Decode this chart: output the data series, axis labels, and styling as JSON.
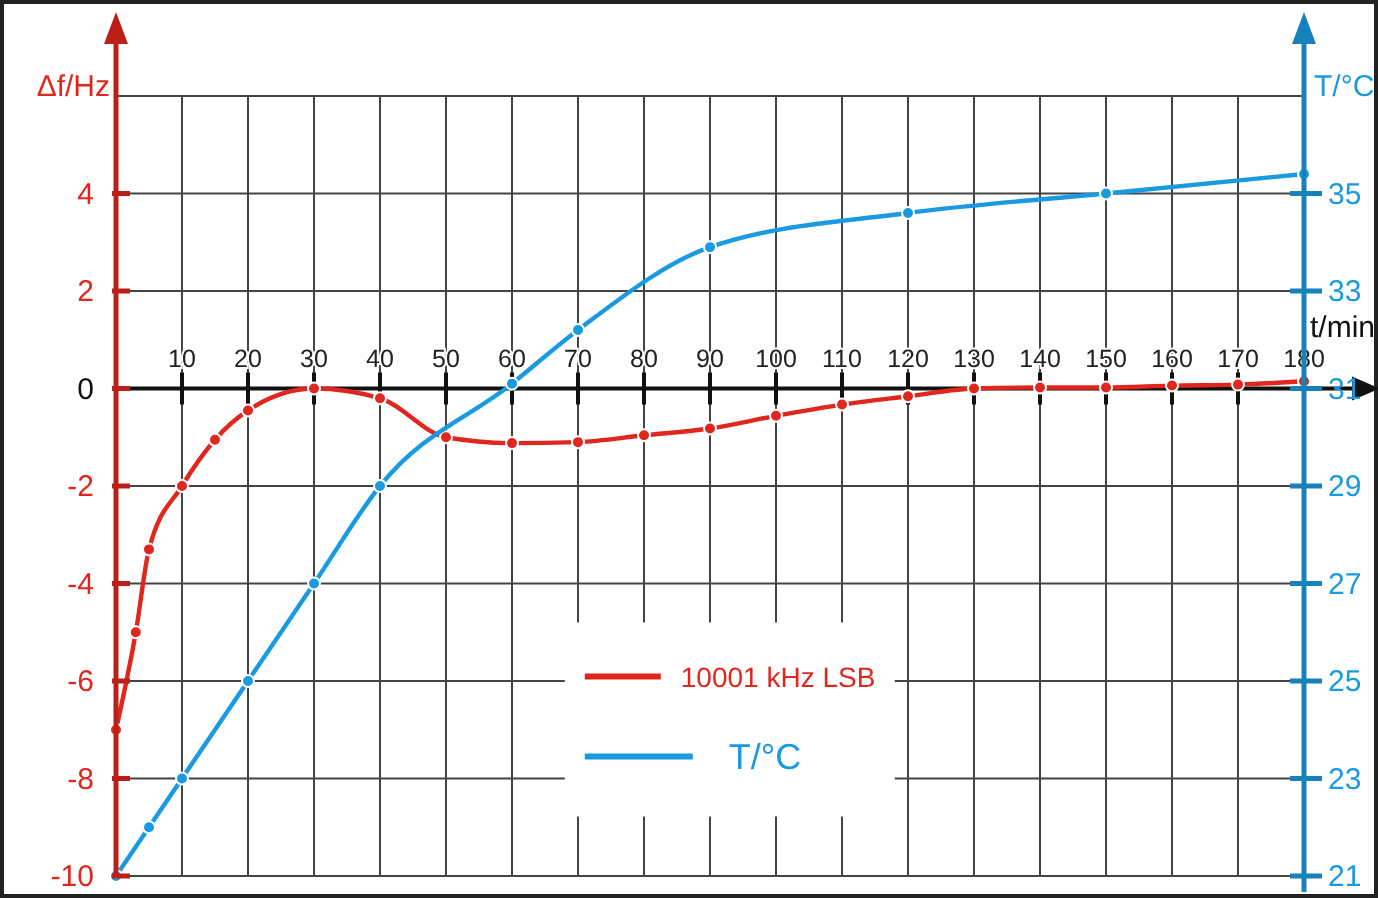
{
  "chart_data": {
    "type": "line",
    "xlabel": "t/min",
    "ylabel": "Δf/Hz",
    "y2label": "T/°C",
    "xlim": [
      0,
      180
    ],
    "xticks": [
      10,
      20,
      30,
      40,
      50,
      60,
      70,
      80,
      90,
      100,
      110,
      120,
      130,
      140,
      150,
      160,
      170,
      180
    ],
    "ylim": [
      -10,
      6
    ],
    "yticks": [
      -10,
      -8,
      -6,
      -4,
      -2,
      0,
      2,
      4,
      {
        "value": 6,
        "label": null
      }
    ],
    "y2lim": [
      21,
      37
    ],
    "y2ticks": [
      21,
      23,
      25,
      27,
      29,
      31,
      33,
      35
    ],
    "grid": true,
    "legend": "bottom",
    "marker": "circle",
    "line_style": "solid",
    "series": [
      {
        "name": "10001 kHz LSB",
        "color": "#e0261d",
        "x": [
          0,
          3,
          5,
          10,
          15,
          20,
          30,
          40,
          50,
          60,
          70,
          80,
          90,
          100,
          110,
          120,
          130,
          140,
          150,
          160,
          170,
          180
        ],
        "values": [
          -7,
          -5,
          -3.3,
          -2,
          -1.05,
          -0.45,
          0,
          -0.2,
          -1,
          -1.12,
          -1.1,
          -0.96,
          -0.82,
          -0.56,
          -0.33,
          -0.16,
          0,
          0.02,
          0.02,
          0.06,
          0.08,
          0.15
        ]
      },
      {
        "name": "T/°C",
        "color": "#1a9ae0",
        "axis": "y2",
        "x": [
          0,
          5,
          10,
          20,
          30,
          40,
          60,
          70,
          90,
          120,
          150,
          180
        ],
        "values": [
          21,
          22,
          23,
          25,
          27,
          29,
          31.1,
          32.2,
          33.9,
          34.6,
          35,
          35.4
        ]
      }
    ]
  }
}
